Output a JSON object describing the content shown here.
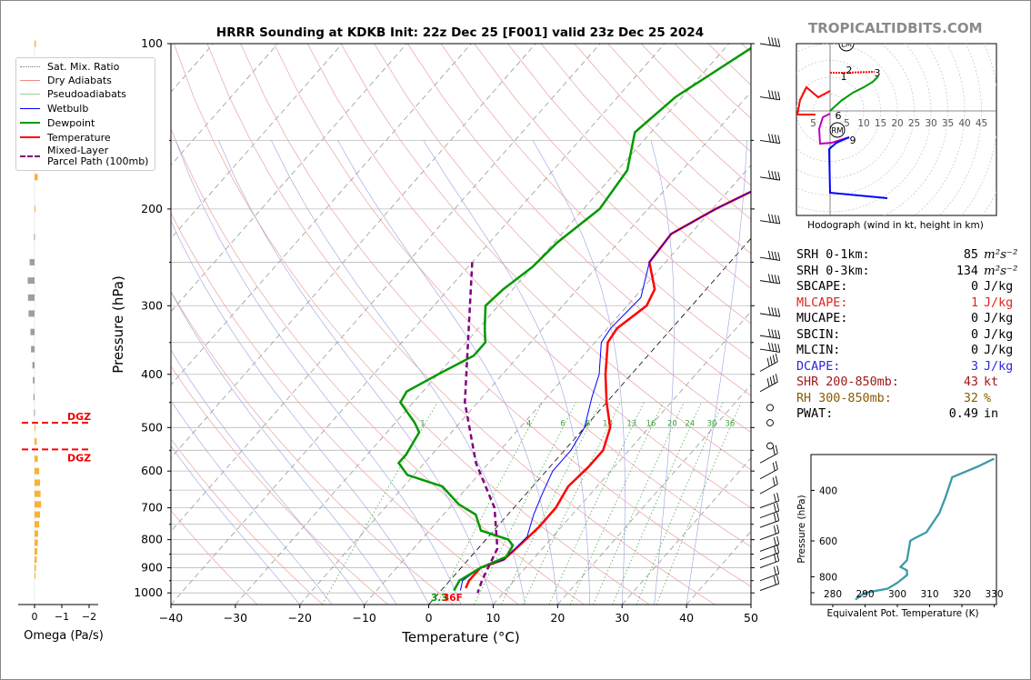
{
  "chart_data": {
    "type": "line",
    "title": "HRRR Sounding at KDKB Init: 22z Dec 25 [F001] valid 23z Dec 25 2024",
    "xlabel": "Temperature (°C)",
    "ylabel": "Pressure (hPa)",
    "xlim": [
      -40,
      50
    ],
    "ylim": [
      1050,
      100
    ],
    "x_ticks": [
      "−40",
      "−30",
      "−20",
      "−10",
      "0",
      "10",
      "20",
      "30",
      "40",
      "50"
    ],
    "y_ticks": [
      "100",
      "200",
      "300",
      "400",
      "500",
      "600",
      "700",
      "800",
      "900",
      "1000"
    ],
    "mixing_ratio_labels": [
      "1",
      "4",
      "6",
      "8",
      "10",
      "13",
      "16",
      "20",
      "24",
      "30",
      "36"
    ],
    "series": [
      {
        "name": "Temperature",
        "color": "#ff0000",
        "points": [
          [
            -0.5,
            100
          ],
          [
            -5,
            123
          ],
          [
            -4.5,
            150
          ],
          [
            -3,
            172
          ],
          [
            -9.5,
            200
          ],
          [
            -13,
            222
          ],
          [
            -12.5,
            250
          ],
          [
            -8,
            280
          ],
          [
            -7,
            300
          ],
          [
            -8.5,
            330
          ],
          [
            -8,
            350
          ],
          [
            -4,
            400
          ],
          [
            0,
            450
          ],
          [
            4,
            500
          ],
          [
            6,
            550
          ],
          [
            6,
            590
          ],
          [
            5.5,
            640
          ],
          [
            6.5,
            700
          ],
          [
            6.5,
            760
          ],
          [
            6,
            820
          ],
          [
            5.5,
            870
          ],
          [
            3,
            900
          ],
          [
            3,
            950
          ],
          [
            3.5,
            980
          ]
        ]
      },
      {
        "name": "Wetbulb",
        "color": "#0000ff",
        "points": [
          [
            -0.5,
            100
          ],
          [
            -5,
            123
          ],
          [
            -4.5,
            150
          ],
          [
            -3.2,
            172
          ],
          [
            -9.5,
            200
          ],
          [
            -13,
            222
          ],
          [
            -12.5,
            250
          ],
          [
            -9,
            290
          ],
          [
            -9.5,
            330
          ],
          [
            -9,
            350
          ],
          [
            -5,
            400
          ],
          [
            -3,
            440
          ],
          [
            0,
            500
          ],
          [
            1,
            550
          ],
          [
            1,
            600
          ],
          [
            2.5,
            660
          ],
          [
            4,
            720
          ],
          [
            6,
            790
          ],
          [
            5.5,
            870
          ],
          [
            3,
            900
          ],
          [
            2,
            950
          ],
          [
            3,
            990
          ]
        ]
      },
      {
        "name": "Dewpoint",
        "color": "#009900",
        "points": [
          [
            -25.5,
            100
          ],
          [
            -31,
            125
          ],
          [
            -32.5,
            145
          ],
          [
            -28.5,
            170
          ],
          [
            -27.5,
            200
          ],
          [
            -29.5,
            230
          ],
          [
            -30,
            255
          ],
          [
            -31.5,
            280
          ],
          [
            -32,
            300
          ],
          [
            -29,
            330
          ],
          [
            -27,
            350
          ],
          [
            -27,
            370
          ],
          [
            -30,
            400
          ],
          [
            -32.5,
            430
          ],
          [
            -32,
            450
          ],
          [
            -27,
            490
          ],
          [
            -25,
            510
          ],
          [
            -24,
            560
          ],
          [
            -24,
            580
          ],
          [
            -21,
            610
          ],
          [
            -14,
            640
          ],
          [
            -9,
            690
          ],
          [
            -5,
            720
          ],
          [
            -2,
            770
          ],
          [
            3.5,
            800
          ],
          [
            5,
            820
          ],
          [
            5.5,
            860
          ],
          [
            3,
            900
          ],
          [
            1.5,
            950
          ],
          [
            2,
            990
          ]
        ]
      },
      {
        "name": "Mixed-Layer Parcel Path (100mb)",
        "color": "#800080",
        "points": [
          [
            -40,
            250
          ],
          [
            -22,
            450
          ],
          [
            -12,
            580
          ],
          [
            -3,
            700
          ],
          [
            3,
            830
          ],
          [
            5,
            950
          ],
          [
            6,
            1000
          ]
        ]
      }
    ],
    "surface_labels": {
      "dewpoint": "3.3",
      "temperature": "36F"
    }
  },
  "legend": {
    "items": [
      {
        "label": "Sat. Mix. Ratio",
        "color": "#777777",
        "style": "dotted"
      },
      {
        "label": "Dry Adiabats",
        "color": "#e88",
        "style": "solid"
      },
      {
        "label": "Pseudoadiabats",
        "color": "#9c9",
        "style": "solid"
      },
      {
        "label": "Wetbulb",
        "color": "#0000ff",
        "style": "solid"
      },
      {
        "label": "Dewpoint",
        "color": "#009900",
        "style": "thick"
      },
      {
        "label": "Temperature",
        "color": "#ff0000",
        "style": "thick"
      },
      {
        "label": "Mixed-Layer\nParcel Path (100mb)",
        "color": "#800080",
        "style": "dashed"
      }
    ]
  },
  "omega": {
    "xlabel": "Omega (Pa/s)",
    "ticks": [
      "0",
      "−1",
      "−2"
    ],
    "dgz_labels": [
      "DGZ",
      "DGZ"
    ],
    "bars": [
      {
        "p": 100,
        "v": 0.05
      },
      {
        "p": 125,
        "v": 0.03
      },
      {
        "p": 150,
        "v": 0.12
      },
      {
        "p": 175,
        "v": 0.12
      },
      {
        "p": 200,
        "v": 0.02
      },
      {
        "p": 225,
        "v": -0.02
      },
      {
        "p": 250,
        "v": -0.18
      },
      {
        "p": 270,
        "v": -0.25
      },
      {
        "p": 290,
        "v": -0.24
      },
      {
        "p": 310,
        "v": -0.22
      },
      {
        "p": 335,
        "v": -0.15
      },
      {
        "p": 360,
        "v": -0.13
      },
      {
        "p": 385,
        "v": -0.08
      },
      {
        "p": 410,
        "v": -0.06
      },
      {
        "p": 440,
        "v": -0.04
      },
      {
        "p": 470,
        "v": -0.02
      },
      {
        "p": 500,
        "v": 0.03
      },
      {
        "p": 530,
        "v": 0.08
      },
      {
        "p": 570,
        "v": 0.12
      },
      {
        "p": 600,
        "v": 0.17
      },
      {
        "p": 630,
        "v": 0.2
      },
      {
        "p": 660,
        "v": 0.22
      },
      {
        "p": 690,
        "v": 0.24
      },
      {
        "p": 720,
        "v": 0.2
      },
      {
        "p": 750,
        "v": 0.17
      },
      {
        "p": 780,
        "v": 0.13
      },
      {
        "p": 810,
        "v": 0.12
      },
      {
        "p": 840,
        "v": 0.1
      },
      {
        "p": 870,
        "v": 0.08
      },
      {
        "p": 900,
        "v": 0.05
      },
      {
        "p": 930,
        "v": 0.03
      }
    ]
  },
  "brand": "TROPICALTIDBITS.COM",
  "hodograph": {
    "caption": "Hodograph (wind in kt, height in km)",
    "ring_labels": [
      "5",
      "5",
      "10",
      "15",
      "20",
      "25",
      "30",
      "35",
      "40",
      "45"
    ],
    "markers": [
      "LM",
      "RM"
    ],
    "height_labels": [
      "1",
      "2",
      "3",
      "6",
      "9"
    ]
  },
  "params": [
    {
      "label": "SRH 0-1km:",
      "value": "85",
      "unit": "m²s⁻²",
      "color": "#000000"
    },
    {
      "label": "SRH 0-3km:",
      "value": "134",
      "unit": "m²s⁻²",
      "color": "#000000"
    },
    {
      "label": "SBCAPE:",
      "value": "0",
      "unit": "J/kg",
      "color": "#000000"
    },
    {
      "label": "MLCAPE:",
      "value": "1",
      "unit": "J/kg",
      "color": "#e0241a"
    },
    {
      "label": "MUCAPE:",
      "value": "0",
      "unit": "J/kg",
      "color": "#000000"
    },
    {
      "label": "SBCIN:",
      "value": "0",
      "unit": "J/kg",
      "color": "#000000"
    },
    {
      "label": "MLCIN:",
      "value": "0",
      "unit": "J/kg",
      "color": "#000000"
    },
    {
      "label": "DCAPE:",
      "value": "3",
      "unit": "J/kg",
      "color": "#2a2ad8"
    },
    {
      "label": "SHR 200-850mb:",
      "value": "43",
      "unit": "kt",
      "color": "#a01818"
    },
    {
      "label": "RH 300-850mb:",
      "value": "32",
      "unit": "%",
      "color": "#8a5a00"
    },
    {
      "label": "PWAT:",
      "value": "0.49",
      "unit": "in",
      "color": "#000000"
    }
  ],
  "theta_e": {
    "xlabel": "Equivalent Pot. Temperature (K)",
    "ylabel": "Pressure (hPa)",
    "x_ticks": [
      "280",
      "290",
      "300",
      "310",
      "320",
      "330"
    ],
    "y_ticks": [
      "400",
      "600",
      "800"
    ],
    "color": "#3a9aa8",
    "points": [
      [
        330,
        310
      ],
      [
        325,
        330
      ],
      [
        317,
        360
      ],
      [
        315,
        420
      ],
      [
        313,
        480
      ],
      [
        309,
        560
      ],
      [
        305,
        590
      ],
      [
        304,
        600
      ],
      [
        303,
        700
      ],
      [
        301,
        740
      ],
      [
        303,
        760
      ],
      [
        303,
        790
      ],
      [
        300,
        840
      ],
      [
        297,
        880
      ],
      [
        290,
        910
      ],
      [
        287,
        960
      ]
    ]
  }
}
